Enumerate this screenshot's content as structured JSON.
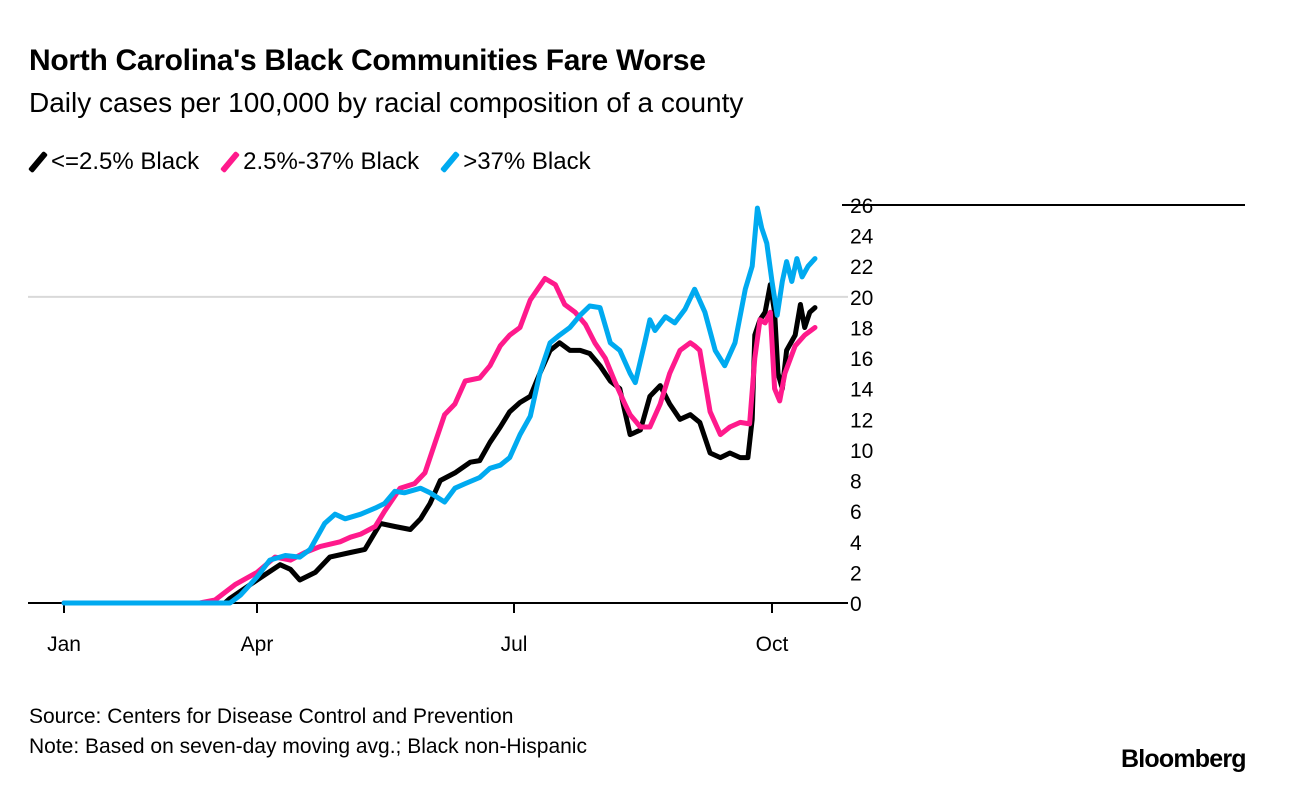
{
  "chart_data": {
    "type": "line",
    "title": "North Carolina's Black Communities Fare Worse",
    "subtitle": "Daily cases per 100,000 by racial composition of a county",
    "xlabel": "",
    "ylabel": "",
    "x_units": "months since Jan 1",
    "xlim": [
      0,
      9.6
    ],
    "ylim": [
      0,
      26
    ],
    "x_ticks": [
      {
        "label": "Jan",
        "value": 0
      },
      {
        "label": "Apr",
        "value": 3
      },
      {
        "label": "Jul",
        "value": 6
      },
      {
        "label": "Oct",
        "value": 9
      }
    ],
    "y_ticks": [
      "0",
      "2",
      "4",
      "6",
      "8",
      "10",
      "12",
      "14",
      "16",
      "18",
      "20",
      "22",
      "24",
      "26"
    ],
    "gridlines": [
      20
    ],
    "legend_position": "top-left",
    "series": [
      {
        "name": "<=2.5% Black",
        "color": "#000000",
        "points": [
          [
            0,
            0
          ],
          [
            2.5,
            0
          ],
          [
            2.58,
            0.3
          ],
          [
            3.0,
            1.5
          ],
          [
            3.27,
            2.5
          ],
          [
            3.39,
            2.2
          ],
          [
            3.5,
            1.5
          ],
          [
            3.68,
            2.0
          ],
          [
            3.85,
            3.0
          ],
          [
            4.09,
            3.3
          ],
          [
            4.26,
            3.5
          ],
          [
            4.44,
            5.2
          ],
          [
            4.61,
            5.0
          ],
          [
            4.79,
            4.8
          ],
          [
            4.91,
            5.5
          ],
          [
            5.02,
            6.5
          ],
          [
            5.14,
            8.0
          ],
          [
            5.31,
            8.5
          ],
          [
            5.49,
            9.2
          ],
          [
            5.6,
            9.3
          ],
          [
            5.72,
            10.5
          ],
          [
            5.84,
            11.5
          ],
          [
            5.95,
            12.5
          ],
          [
            6.07,
            13.1
          ],
          [
            6.19,
            13.5
          ],
          [
            6.3,
            15.0
          ],
          [
            6.42,
            16.5
          ],
          [
            6.53,
            17.0
          ],
          [
            6.65,
            16.5
          ],
          [
            6.77,
            16.5
          ],
          [
            6.88,
            16.3
          ],
          [
            7.0,
            15.5
          ],
          [
            7.12,
            14.5
          ],
          [
            7.23,
            14.0
          ],
          [
            7.29,
            12.5
          ],
          [
            7.35,
            11.0
          ],
          [
            7.47,
            11.3
          ],
          [
            7.58,
            13.5
          ],
          [
            7.7,
            14.2
          ],
          [
            7.81,
            13.0
          ],
          [
            7.93,
            12.0
          ],
          [
            8.05,
            12.3
          ],
          [
            8.16,
            11.8
          ],
          [
            8.28,
            9.8
          ],
          [
            8.4,
            9.5
          ],
          [
            8.51,
            9.8
          ],
          [
            8.63,
            9.5
          ],
          [
            8.72,
            9.5
          ],
          [
            8.77,
            12.0
          ],
          [
            8.8,
            17.5
          ],
          [
            8.86,
            18.5
          ],
          [
            8.92,
            19.0
          ],
          [
            8.98,
            20.8
          ],
          [
            9.03,
            19.0
          ],
          [
            9.07,
            15.0
          ],
          [
            9.12,
            14.0
          ],
          [
            9.17,
            16.5
          ],
          [
            9.27,
            17.5
          ],
          [
            9.33,
            19.5
          ],
          [
            9.38,
            18.0
          ],
          [
            9.44,
            19.0
          ],
          [
            9.5,
            19.3
          ]
        ]
      },
      {
        "name": "2.5%-37% Black",
        "color": "#ff1a8c",
        "points": [
          [
            0,
            0
          ],
          [
            2.11,
            0
          ],
          [
            2.35,
            0.2
          ],
          [
            2.66,
            1.2
          ],
          [
            3.0,
            2.0
          ],
          [
            3.21,
            3.0
          ],
          [
            3.39,
            2.8
          ],
          [
            3.56,
            3.3
          ],
          [
            3.74,
            3.7
          ],
          [
            3.97,
            4.0
          ],
          [
            4.09,
            4.3
          ],
          [
            4.21,
            4.5
          ],
          [
            4.38,
            5.0
          ],
          [
            4.49,
            6.0
          ],
          [
            4.67,
            7.5
          ],
          [
            4.84,
            7.8
          ],
          [
            4.96,
            8.5
          ],
          [
            5.08,
            10.5
          ],
          [
            5.19,
            12.3
          ],
          [
            5.31,
            13.0
          ],
          [
            5.43,
            14.5
          ],
          [
            5.6,
            14.7
          ],
          [
            5.72,
            15.5
          ],
          [
            5.84,
            16.8
          ],
          [
            5.95,
            17.5
          ],
          [
            6.07,
            18.0
          ],
          [
            6.19,
            19.8
          ],
          [
            6.36,
            21.2
          ],
          [
            6.48,
            20.8
          ],
          [
            6.59,
            19.5
          ],
          [
            6.71,
            19.0
          ],
          [
            6.83,
            18.2
          ],
          [
            6.94,
            17.0
          ],
          [
            7.06,
            16.0
          ],
          [
            7.17,
            14.5
          ],
          [
            7.29,
            13.0
          ],
          [
            7.35,
            12.3
          ],
          [
            7.47,
            11.5
          ],
          [
            7.58,
            11.5
          ],
          [
            7.7,
            13.0
          ],
          [
            7.81,
            15.0
          ],
          [
            7.93,
            16.5
          ],
          [
            8.05,
            17.0
          ],
          [
            8.1,
            16.8
          ],
          [
            8.16,
            16.5
          ],
          [
            8.28,
            12.5
          ],
          [
            8.4,
            11.0
          ],
          [
            8.51,
            11.5
          ],
          [
            8.63,
            11.8
          ],
          [
            8.74,
            11.7
          ],
          [
            8.8,
            16.0
          ],
          [
            8.86,
            18.5
          ],
          [
            8.92,
            18.3
          ],
          [
            8.98,
            19.0
          ],
          [
            9.03,
            14.0
          ],
          [
            9.09,
            13.2
          ],
          [
            9.15,
            15.0
          ],
          [
            9.27,
            16.8
          ],
          [
            9.38,
            17.5
          ],
          [
            9.5,
            18.0
          ]
        ]
      },
      {
        "name": ">37% Black",
        "color": "#00aaf0",
        "points": [
          [
            0,
            0
          ],
          [
            2.58,
            0
          ],
          [
            2.74,
            0.5
          ],
          [
            3.0,
            1.7
          ],
          [
            3.15,
            2.8
          ],
          [
            3.33,
            3.1
          ],
          [
            3.5,
            3.0
          ],
          [
            3.62,
            3.5
          ],
          [
            3.79,
            5.2
          ],
          [
            3.91,
            5.8
          ],
          [
            4.03,
            5.5
          ],
          [
            4.21,
            5.8
          ],
          [
            4.38,
            6.2
          ],
          [
            4.49,
            6.5
          ],
          [
            4.61,
            7.3
          ],
          [
            4.72,
            7.2
          ],
          [
            4.91,
            7.5
          ],
          [
            5.02,
            7.2
          ],
          [
            5.19,
            6.6
          ],
          [
            5.31,
            7.5
          ],
          [
            5.43,
            7.8
          ],
          [
            5.6,
            8.2
          ],
          [
            5.72,
            8.8
          ],
          [
            5.84,
            9.0
          ],
          [
            5.95,
            9.5
          ],
          [
            6.07,
            11.0
          ],
          [
            6.19,
            12.2
          ],
          [
            6.3,
            15.0
          ],
          [
            6.42,
            17.0
          ],
          [
            6.53,
            17.5
          ],
          [
            6.65,
            18.0
          ],
          [
            6.77,
            18.8
          ],
          [
            6.88,
            19.4
          ],
          [
            7.0,
            19.3
          ],
          [
            7.12,
            17.0
          ],
          [
            7.23,
            16.5
          ],
          [
            7.35,
            15.0
          ],
          [
            7.41,
            14.4
          ],
          [
            7.52,
            17.0
          ],
          [
            7.58,
            18.5
          ],
          [
            7.64,
            17.8
          ],
          [
            7.76,
            18.7
          ],
          [
            7.87,
            18.3
          ],
          [
            7.99,
            19.2
          ],
          [
            8.1,
            20.5
          ],
          [
            8.22,
            19.0
          ],
          [
            8.34,
            16.5
          ],
          [
            8.45,
            15.5
          ],
          [
            8.57,
            17.0
          ],
          [
            8.69,
            20.5
          ],
          [
            8.77,
            22.0
          ],
          [
            8.83,
            25.8
          ],
          [
            8.88,
            24.5
          ],
          [
            8.94,
            23.5
          ],
          [
            9.0,
            21.0
          ],
          [
            9.06,
            18.8
          ],
          [
            9.12,
            21.0
          ],
          [
            9.17,
            22.3
          ],
          [
            9.23,
            21.0
          ],
          [
            9.29,
            22.5
          ],
          [
            9.35,
            21.3
          ],
          [
            9.42,
            22.0
          ],
          [
            9.5,
            22.5
          ]
        ]
      }
    ]
  },
  "footer": {
    "source": "Source: Centers for Disease Control and Prevention",
    "note": "Note: Based on seven-day moving avg.; Black non-Hispanic",
    "logo": "Bloomberg"
  }
}
